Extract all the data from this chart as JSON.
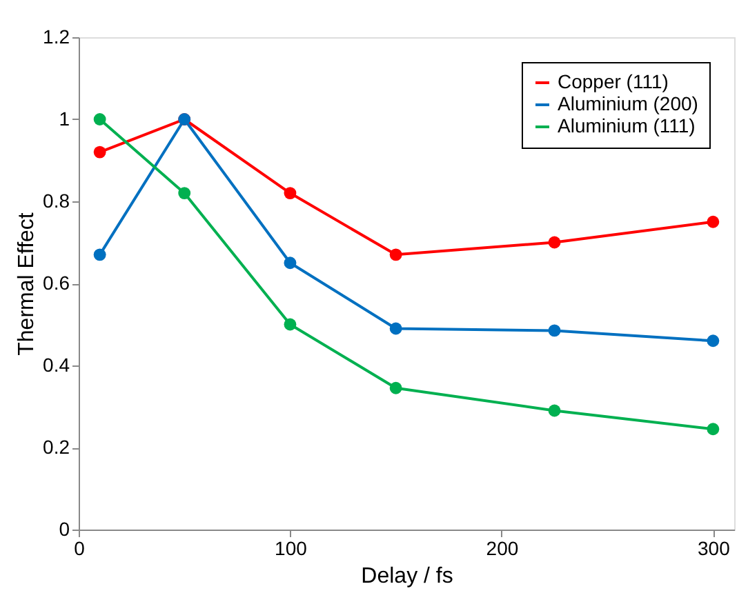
{
  "chart_data": {
    "type": "line",
    "xlabel": "Delay / fs",
    "ylabel": "Thermal Effect",
    "x": [
      10,
      50,
      100,
      150,
      225,
      300
    ],
    "series": [
      {
        "name": "Copper (111)",
        "color": "#ff0000",
        "values": [
          0.92,
          1.0,
          0.82,
          0.67,
          0.7,
          0.75
        ]
      },
      {
        "name": "Aluminium (200)",
        "color": "#0070c0",
        "values": [
          0.67,
          1.0,
          0.65,
          0.49,
          0.485,
          0.46
        ]
      },
      {
        "name": "Aluminium (111)",
        "color": "#00b050",
        "values": [
          1.0,
          0.82,
          0.5,
          0.345,
          0.29,
          0.245
        ]
      }
    ],
    "xlim": [
      0,
      310
    ],
    "xticks": [
      0,
      100,
      200,
      300
    ],
    "ylim": [
      0,
      1.2
    ],
    "yticks": [
      0,
      0.2,
      0.4,
      0.6,
      0.8,
      1,
      1.2
    ],
    "grid": false,
    "legend": "top right",
    "marker": "circle",
    "line_style": "solid"
  }
}
